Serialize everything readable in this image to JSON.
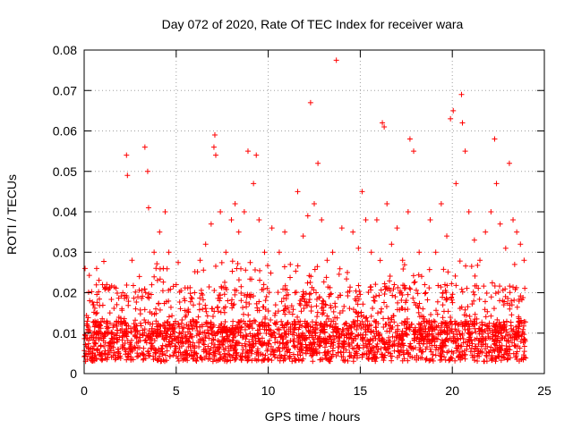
{
  "chart_data": {
    "type": "scatter",
    "title": "Day 072 of 2020, Rate Of TEC Index for receiver wara",
    "xlabel": "GPS time / hours",
    "ylabel": "ROTI / TECUs",
    "xlim": [
      0,
      25
    ],
    "ylim": [
      0,
      0.08
    ],
    "xticks": [
      0,
      5,
      10,
      15,
      20,
      25
    ],
    "xtick_labels": [
      "0",
      "5",
      "10",
      "15",
      "20",
      "25"
    ],
    "yticks": [
      0,
      0.01,
      0.02,
      0.03,
      0.04,
      0.05,
      0.06,
      0.07,
      0.08
    ],
    "ytick_labels": [
      "0",
      "0.01",
      "0.02",
      "0.03",
      "0.04",
      "0.05",
      "0.06",
      "0.07",
      "0.08"
    ],
    "grid": true,
    "marker": "+",
    "series": [
      {
        "name": "ROTI",
        "color": "#ff0000",
        "x": [
          0.05,
          0.3,
          0.6,
          1.0,
          1.4,
          1.8,
          2.1,
          2.3,
          2.35,
          2.6,
          3.0,
          3.3,
          3.45,
          3.5,
          3.8,
          4.1,
          4.3,
          4.4,
          4.6,
          5.0,
          5.5,
          6.0,
          6.3,
          6.6,
          6.9,
          7.05,
          7.1,
          7.15,
          7.4,
          7.7,
          8.0,
          8.2,
          8.4,
          8.7,
          8.9,
          9.2,
          9.35,
          9.5,
          9.8,
          10.2,
          10.6,
          10.9,
          11.2,
          11.6,
          11.9,
          12.15,
          12.3,
          12.5,
          12.7,
          12.9,
          13.2,
          13.5,
          13.7,
          14.0,
          14.3,
          14.6,
          14.9,
          15.1,
          15.3,
          15.6,
          15.9,
          16.2,
          16.3,
          16.45,
          16.7,
          17.0,
          17.3,
          17.6,
          17.7,
          17.9,
          18.2,
          18.5,
          18.8,
          19.1,
          19.4,
          19.7,
          19.9,
          20.05,
          20.2,
          20.5,
          20.55,
          20.7,
          20.9,
          21.2,
          21.5,
          21.8,
          22.1,
          22.3,
          22.4,
          22.6,
          22.9,
          23.1,
          23.3,
          23.5,
          23.7,
          23.9,
          0.4,
          1.6,
          2.8,
          4.8,
          6.2,
          7.8,
          9.0,
          10.4,
          11.4,
          12.6,
          13.9,
          15.4,
          16.9,
          18.4,
          19.6,
          21.0,
          22.8,
          23.6
        ],
        "y": [
          0.026,
          0.018,
          0.012,
          0.022,
          0.015,
          0.01,
          0.02,
          0.054,
          0.049,
          0.028,
          0.024,
          0.056,
          0.05,
          0.041,
          0.03,
          0.035,
          0.026,
          0.04,
          0.03,
          0.022,
          0.014,
          0.02,
          0.028,
          0.032,
          0.037,
          0.056,
          0.059,
          0.054,
          0.04,
          0.03,
          0.038,
          0.042,
          0.035,
          0.04,
          0.055,
          0.047,
          0.054,
          0.038,
          0.03,
          0.036,
          0.03,
          0.035,
          0.027,
          0.045,
          0.034,
          0.039,
          0.067,
          0.042,
          0.052,
          0.038,
          0.028,
          0.03,
          0.0775,
          0.036,
          0.025,
          0.035,
          0.031,
          0.045,
          0.038,
          0.03,
          0.038,
          0.062,
          0.061,
          0.042,
          0.032,
          0.036,
          0.028,
          0.04,
          0.058,
          0.055,
          0.03,
          0.022,
          0.038,
          0.03,
          0.042,
          0.034,
          0.063,
          0.065,
          0.047,
          0.069,
          0.062,
          0.055,
          0.04,
          0.033,
          0.028,
          0.035,
          0.04,
          0.058,
          0.047,
          0.037,
          0.031,
          0.052,
          0.038,
          0.035,
          0.032,
          0.028,
          0.009,
          0.012,
          0.016,
          0.011,
          0.014,
          0.018,
          0.013,
          0.017,
          0.012,
          0.02,
          0.015,
          0.011,
          0.019,
          0.016,
          0.022,
          0.013,
          0.017,
          0.014
        ]
      }
    ]
  }
}
